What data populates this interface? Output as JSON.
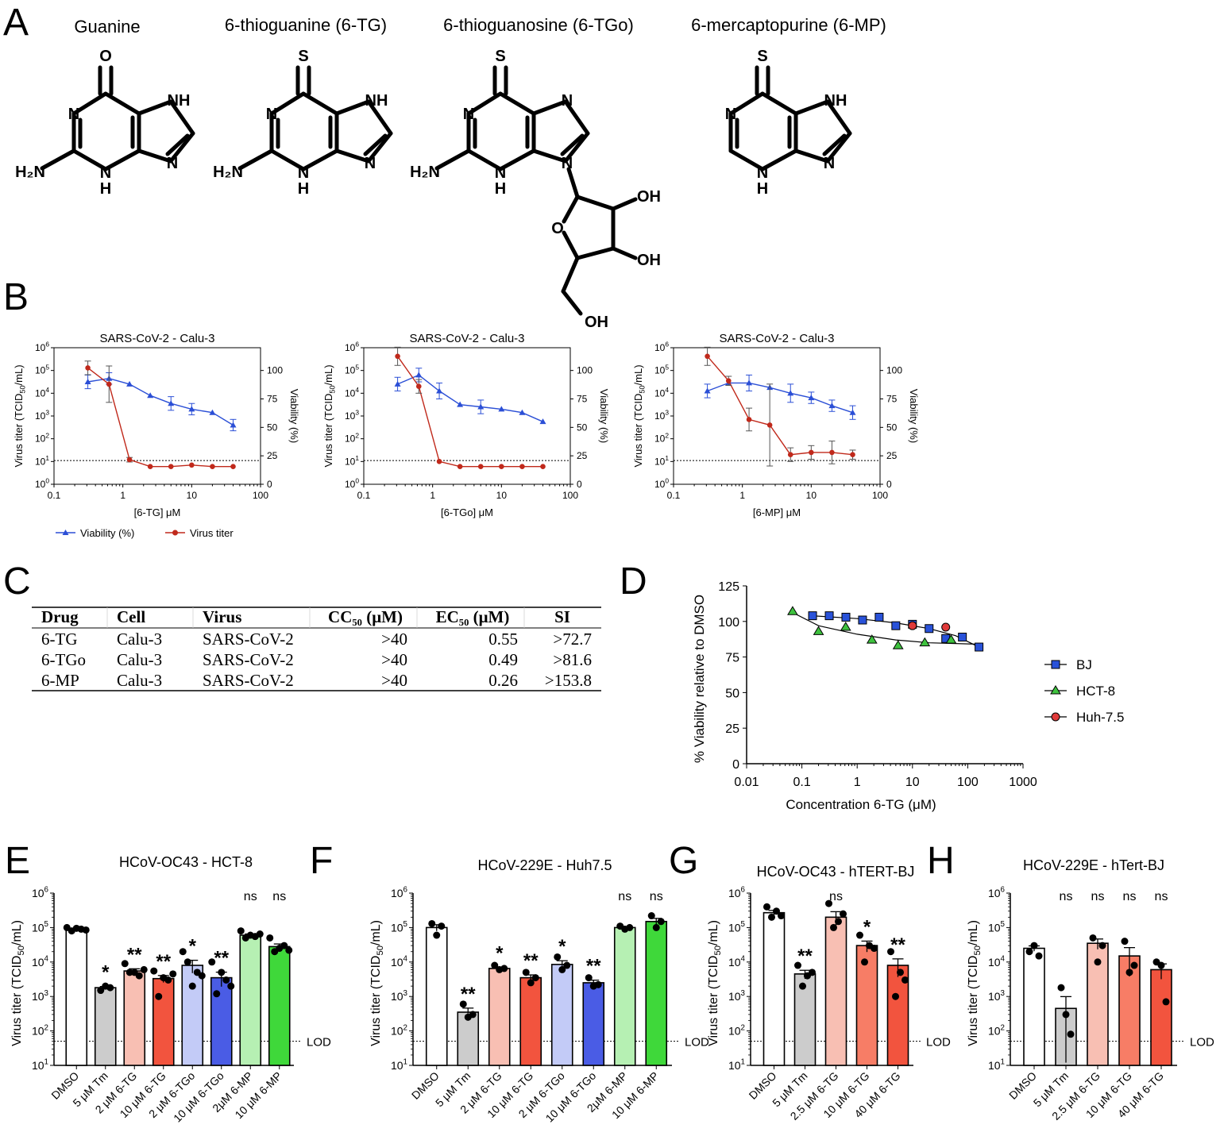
{
  "panel_letters": [
    "A",
    "B",
    "C",
    "D",
    "E",
    "F",
    "G",
    "H"
  ],
  "panel_a": {
    "compounds": [
      "Guanine",
      "6-thioguanine (6-TG)",
      "6-thioguanosine (6-TGo)",
      "6-mercaptopurine (6-MP)"
    ],
    "atoms": {
      "O": "O",
      "S": "S",
      "N": "N",
      "NH": "NH",
      "H": "H",
      "H2N": "H₂N",
      "OH": "OH"
    }
  },
  "legend_b": {
    "viability": "Viability (%)",
    "virus": "Virus titer"
  },
  "colors": {
    "viability": "#2b4fd6",
    "virus": "#c0291b",
    "bar_edge": "#000000"
  },
  "table_c": {
    "headers": [
      "Drug",
      "Cell",
      "Virus",
      "CC₅₀ (μM)",
      "EC₅₀ (μM)",
      "SI"
    ],
    "rows": [
      [
        "6-TG",
        "Calu-3",
        "SARS-CoV-2",
        ">40",
        "0.55",
        ">72.7"
      ],
      [
        "6-TGo",
        "Calu-3",
        "SARS-CoV-2",
        ">40",
        "0.49",
        ">81.6"
      ],
      [
        "6-MP",
        "Calu-3",
        "SARS-CoV-2",
        ">40",
        "0.26",
        ">153.8"
      ]
    ]
  },
  "chart_data": [
    {
      "panel": "B1",
      "type": "line",
      "title": "SARS-CoV-2 - Calu-3",
      "xlabel": "[6-TG] μM",
      "ylabel": "Virus titer (TCID50/mL)",
      "y2label": "Viability (%)",
      "x_scale": "log",
      "xlim": [
        0.1,
        100
      ],
      "y_scale": "log",
      "ylim": [
        1,
        1000000
      ],
      "y2lim": [
        0,
        120
      ],
      "x_ticks": [
        "0.1",
        "1",
        "10",
        "100"
      ],
      "y2_ticks": [
        "0",
        "25",
        "50",
        "75",
        "100"
      ],
      "lod_titer": 11,
      "series": [
        {
          "name": "Viability (%)",
          "axis": "y2",
          "marker": "triangle",
          "x": [
            0.31,
            0.63,
            1.25,
            2.5,
            5,
            10,
            20,
            40
          ],
          "y": [
            90,
            93,
            88,
            78,
            71,
            66,
            63,
            52
          ],
          "err": [
            6,
            5,
            0,
            0,
            6,
            5,
            0,
            5
          ]
        },
        {
          "name": "Virus titer",
          "axis": "y",
          "marker": "circle",
          "x": [
            0.31,
            0.63,
            1.25,
            2.5,
            5,
            10,
            20,
            40
          ],
          "y": [
            130000,
            25000,
            12,
            6,
            6,
            7,
            6,
            6
          ],
          "err_log": [
            0.3,
            0.8,
            0.1,
            0,
            0,
            0,
            0,
            0
          ]
        }
      ]
    },
    {
      "panel": "B2",
      "type": "line",
      "title": "SARS-CoV-2 - Calu-3",
      "xlabel": "[6-TGo] μM",
      "ylabel": "Virus titer (TCID50/mL)",
      "y2label": "Viability (%)",
      "x_scale": "log",
      "xlim": [
        0.1,
        100
      ],
      "y_scale": "log",
      "ylim": [
        1,
        1000000
      ],
      "y2lim": [
        0,
        120
      ],
      "x_ticks": [
        "0.1",
        "1",
        "10",
        "100"
      ],
      "y2_ticks": [
        "0",
        "25",
        "50",
        "75",
        "100"
      ],
      "lod_titer": 11,
      "series": [
        {
          "name": "Viability (%)",
          "axis": "y2",
          "marker": "triangle",
          "x": [
            0.31,
            0.63,
            1.25,
            2.5,
            5,
            10,
            20,
            40
          ],
          "y": [
            88,
            96,
            82,
            70,
            68,
            66,
            63,
            55
          ],
          "err": [
            6,
            6,
            7,
            0,
            6,
            0,
            0,
            0
          ]
        },
        {
          "name": "Virus titer",
          "axis": "y",
          "marker": "circle",
          "x": [
            0.31,
            0.63,
            1.25,
            2.5,
            5,
            10,
            20,
            40
          ],
          "y": [
            420000,
            20000,
            10,
            6,
            6,
            6,
            6,
            6
          ],
          "err_log": [
            0.4,
            0.3,
            0,
            0,
            0,
            0,
            0,
            0
          ]
        }
      ]
    },
    {
      "panel": "B3",
      "type": "line",
      "title": "SARS-CoV-2 - Calu-3",
      "xlabel": "[6-MP] μM",
      "ylabel": "Virus titer (TCID50/mL)",
      "y2label": "Viability (%)",
      "x_scale": "log",
      "xlim": [
        0.1,
        100
      ],
      "y_scale": "log",
      "ylim": [
        1,
        1000000
      ],
      "y2lim": [
        0,
        120
      ],
      "x_ticks": [
        "0.1",
        "1",
        "10",
        "100"
      ],
      "y2_ticks": [
        "0",
        "25",
        "50",
        "75",
        "100"
      ],
      "lod_titer": 11,
      "series": [
        {
          "name": "Viability (%)",
          "axis": "y2",
          "marker": "triangle",
          "x": [
            0.31,
            0.63,
            1.25,
            2.5,
            5,
            10,
            20,
            40
          ],
          "y": [
            82,
            89,
            89,
            85,
            80,
            76,
            69,
            63
          ],
          "err": [
            6,
            0,
            7,
            0,
            8,
            5,
            5,
            6
          ]
        },
        {
          "name": "Virus titer",
          "axis": "y",
          "marker": "circle",
          "x": [
            0.31,
            0.63,
            1.25,
            2.5,
            5,
            10,
            20,
            40
          ],
          "y": [
            420000,
            35000,
            700,
            400,
            20,
            25,
            25,
            20
          ],
          "err_log": [
            0.4,
            0.2,
            0.5,
            1.8,
            0.3,
            0.3,
            0.5,
            0.2
          ]
        }
      ]
    },
    {
      "panel": "D",
      "type": "scatter",
      "xlabel": "Concentration 6-TG (μM)",
      "ylabel": "% Viability relative to DMSO",
      "x_scale": "log",
      "xlim": [
        0.01,
        1000
      ],
      "ylim": [
        0,
        125
      ],
      "x_ticks": [
        "0.01",
        "0.1",
        "1",
        "10",
        "100",
        "1000"
      ],
      "y_ticks": [
        "0",
        "25",
        "50",
        "75",
        "100",
        "125"
      ],
      "series": [
        {
          "name": "BJ",
          "color": "#2952d9",
          "marker": "square",
          "x": [
            0.156,
            0.3125,
            0.625,
            1.25,
            2.5,
            5,
            10,
            20,
            40,
            80,
            160
          ],
          "y": [
            104,
            104,
            103,
            101,
            103,
            97,
            98,
            95,
            88,
            89,
            82
          ]
        },
        {
          "name": "HCT-8",
          "color": "#3ec23e",
          "marker": "triangle",
          "x": [
            0.068,
            0.2,
            0.62,
            1.85,
            5.5,
            16.7,
            50
          ],
          "y": [
            107,
            93,
            96,
            87,
            83,
            85,
            87
          ]
        },
        {
          "name": "Huh-7.5",
          "color": "#e03a3a",
          "marker": "circle",
          "x": [
            10,
            40
          ],
          "y": [
            97,
            96
          ]
        }
      ]
    },
    {
      "panel": "E",
      "type": "bar",
      "title": "HCoV-OC43 - HCT-8",
      "ylabel": "Virus titer (TCID50/mL)",
      "y_scale": "log",
      "ylim": [
        10,
        1000000
      ],
      "lod": 50,
      "lod_label": "LOD",
      "categories": [
        "DMSO",
        "5 μM Tm",
        "2 μM 6-TG",
        "10 μM 6-TG",
        "2 μM 6-TGo",
        "10 μM 6-TGo",
        "2μM 6-MP",
        "10 μM 6-MP"
      ],
      "values": [
        90000,
        1800,
        5500,
        3300,
        8000,
        3500,
        60000,
        28000
      ],
      "sig": [
        "",
        "*",
        "**",
        "**",
        "*",
        "**",
        "ns",
        "ns"
      ],
      "bar_colors": [
        "#ffffff",
        "#cccccc",
        "#f8bfb3",
        "#f2543e",
        "#c3cbf7",
        "#4a5ce5",
        "#b6f0b3",
        "#3fd83a"
      ],
      "points": [
        [
          100000,
          80000,
          95000,
          90000,
          85000
        ],
        [
          1500,
          2000,
          1800
        ],
        [
          9000,
          5000,
          5000,
          4000,
          6000
        ],
        [
          5500,
          1000,
          3500,
          3000,
          4500
        ],
        [
          20000,
          10000,
          2000,
          5000,
          4000
        ],
        [
          10000,
          1200,
          5000,
          3000,
          2000
        ],
        [
          80000,
          50000,
          60000,
          55000,
          65000
        ],
        [
          50000,
          20000,
          25000,
          30000,
          22000
        ]
      ]
    },
    {
      "panel": "F",
      "type": "bar",
      "title": "HCoV-229E - Huh7.5",
      "ylabel": "Virus titer (TCID50/mL)",
      "y_scale": "log",
      "ylim": [
        10,
        1000000
      ],
      "lod": 50,
      "lod_label": "LOD",
      "categories": [
        "DMSO",
        "5 μM Tm",
        "2 μM 6-TG",
        "10 μM 6-TG",
        "2 μM 6-TGo",
        "10 μM 6-TGo",
        "2μM 6-MP",
        "10 μM 6-MP"
      ],
      "values": [
        100000,
        350,
        6500,
        3500,
        8500,
        2500,
        100000,
        150000
      ],
      "sig": [
        "",
        "**",
        "*",
        "**",
        "*",
        "**",
        "ns",
        "ns"
      ],
      "bar_colors": [
        "#ffffff",
        "#cccccc",
        "#f8bfb3",
        "#f2543e",
        "#c3cbf7",
        "#4a5ce5",
        "#b6f0b3",
        "#3fd83a"
      ],
      "points": [
        [
          130000,
          60000,
          110000
        ],
        [
          600,
          250,
          300
        ],
        [
          8000,
          6000,
          6500
        ],
        [
          5000,
          2500,
          3500
        ],
        [
          14000,
          6000,
          8000
        ],
        [
          3500,
          2000,
          2200
        ],
        [
          110000,
          90000,
          100000
        ],
        [
          220000,
          100000,
          150000
        ]
      ]
    },
    {
      "panel": "G",
      "type": "bar",
      "title": "HCoV-OC43 - hTERT-BJ",
      "ylabel": "Virus titer (TCID50/mL)",
      "y_scale": "log",
      "ylim": [
        10,
        1000000
      ],
      "lod": 50,
      "lod_label": "LOD",
      "categories": [
        "DMSO",
        "5 μM Tm",
        "2.5 μM 6-TG",
        "10 μM 6-TG",
        "40 μM 6-TG"
      ],
      "values": [
        270000,
        4500,
        200000,
        30000,
        8000
      ],
      "sig": [
        "",
        "**",
        "ns",
        "*",
        "**"
      ],
      "bar_colors": [
        "#ffffff",
        "#cccccc",
        "#f8bfb3",
        "#f77d66",
        "#f2543e"
      ],
      "points": [
        [
          400000,
          200000,
          300000,
          220000
        ],
        [
          8000,
          2000,
          4000,
          5000
        ],
        [
          500000,
          100000,
          150000,
          250000
        ],
        [
          60000,
          10000,
          30000,
          25000
        ],
        [
          20000,
          1000,
          5000,
          3000
        ]
      ]
    },
    {
      "panel": "H",
      "type": "bar",
      "title": "HCoV-229E - hTert-BJ",
      "ylabel": "Virus titer (TCID50/mL)",
      "y_scale": "log",
      "ylim": [
        10,
        1000000
      ],
      "lod": 50,
      "lod_label": "LOD",
      "categories": [
        "DMSO",
        "5 μM Tm",
        "2.5 μM 6-TG",
        "10 μM 6-TG",
        "40 μM 6-TG"
      ],
      "values": [
        25000,
        450,
        35000,
        15000,
        6000
      ],
      "sig": [
        "",
        "ns",
        "ns",
        "ns",
        "ns"
      ],
      "bar_colors": [
        "#ffffff",
        "#cccccc",
        "#f8bfb3",
        "#f77d66",
        "#f2543e"
      ],
      "points": [
        [
          20000,
          30000,
          15000
        ],
        [
          1800,
          300,
          80
        ],
        [
          50000,
          10000,
          30000
        ],
        [
          40000,
          5000,
          8000
        ],
        [
          10000,
          8000,
          700
        ]
      ]
    }
  ]
}
